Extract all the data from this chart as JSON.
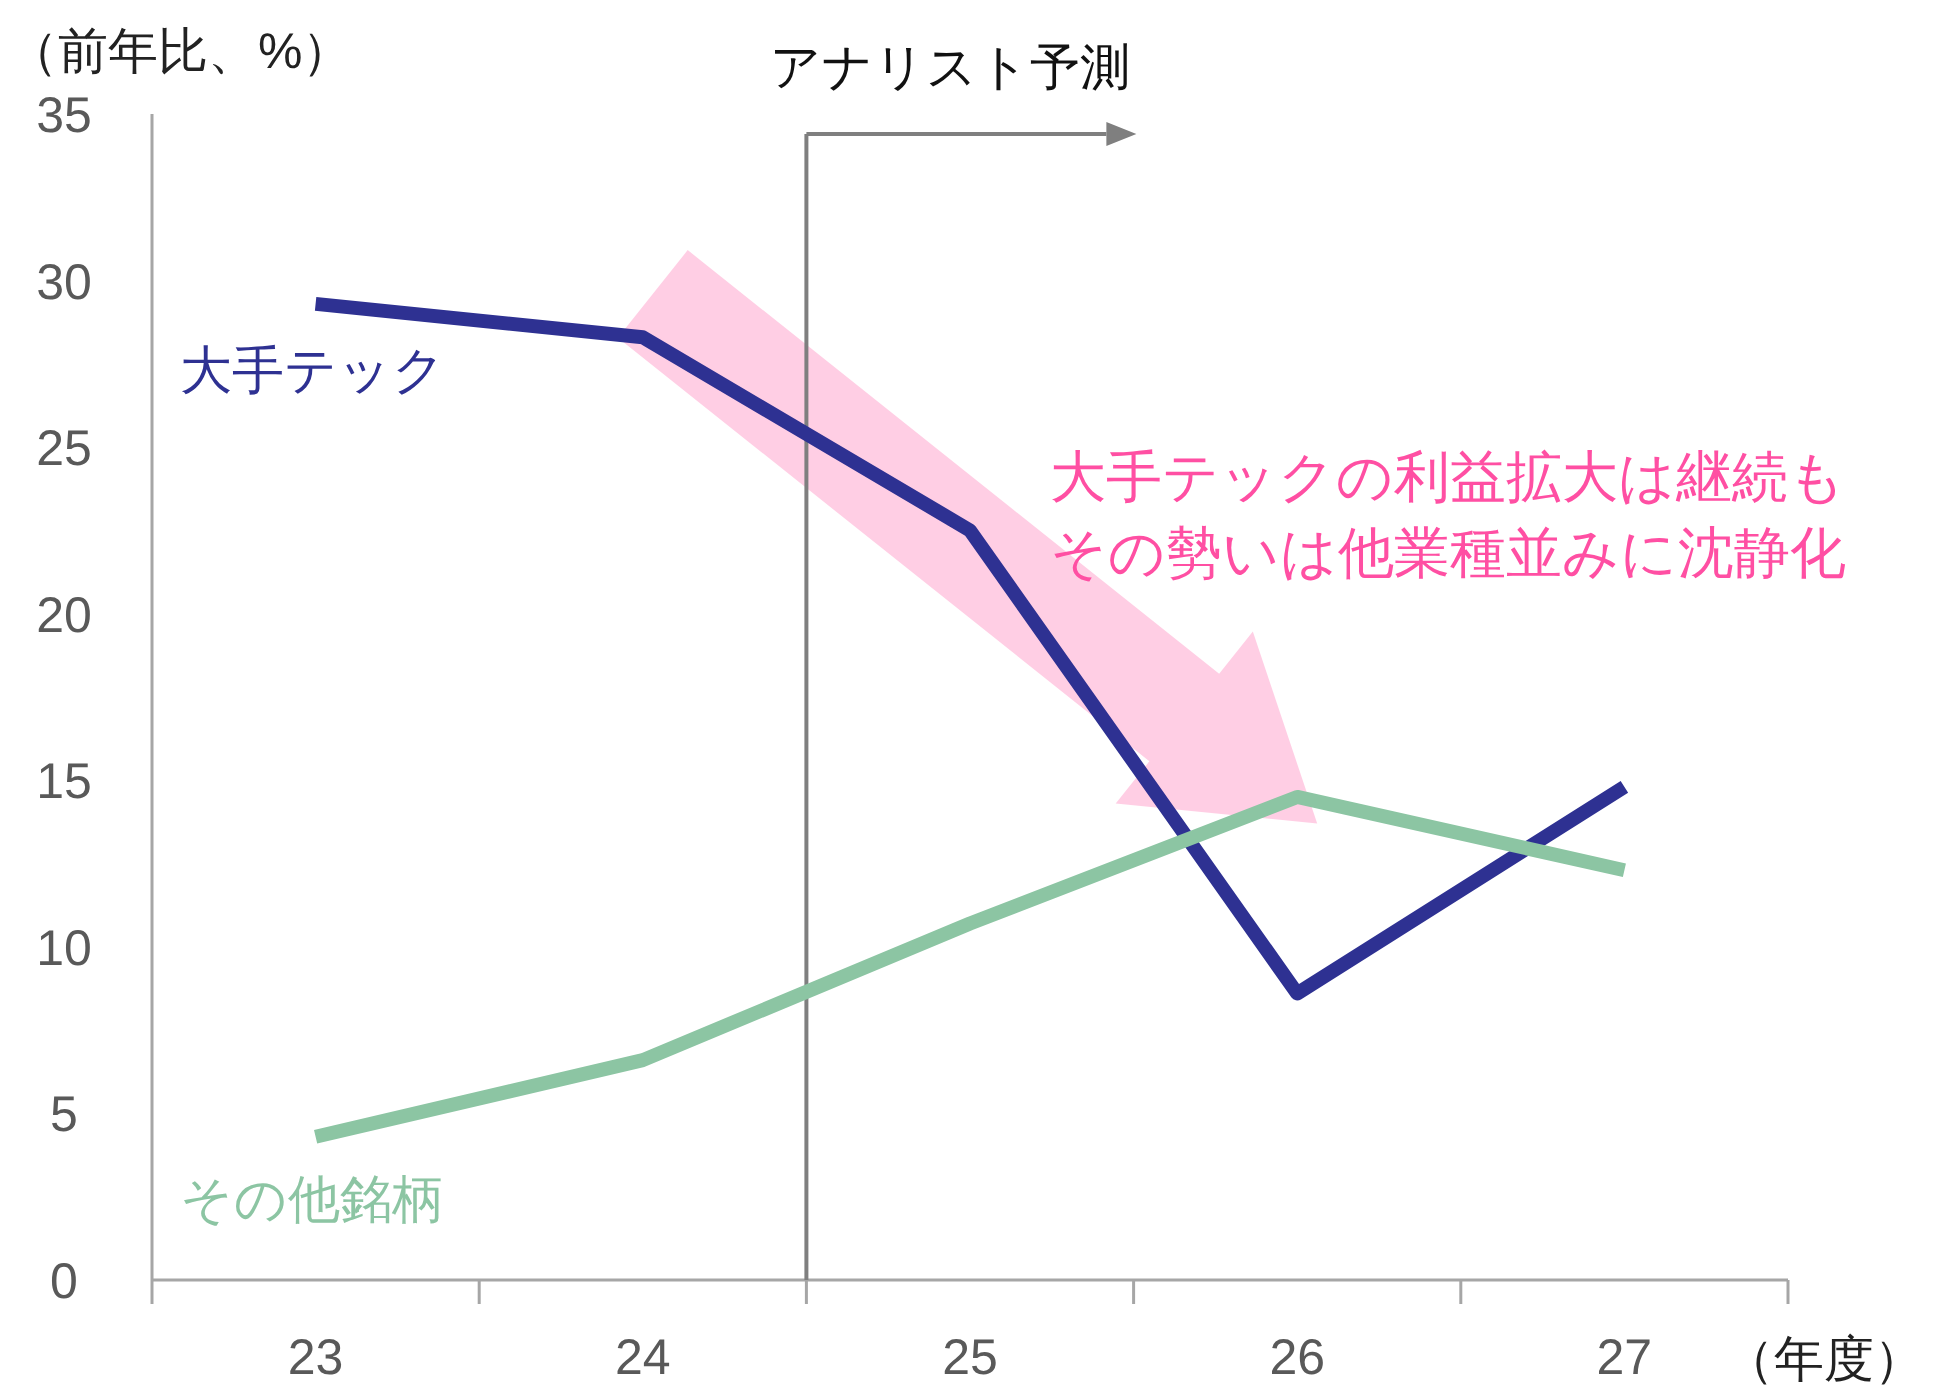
{
  "chart_data": {
    "type": "line",
    "ylabel": "（前年比、%）",
    "xlabel": "（年度）",
    "x": [
      23,
      24,
      25,
      26,
      27
    ],
    "xlim": [
      22.5,
      27.5
    ],
    "xticks": [
      23,
      24,
      25,
      26,
      27,
      {
        "value": 22.5,
        "label": null
      },
      {
        "value": 23.5,
        "label": null
      },
      {
        "value": 24.5,
        "label": null
      },
      {
        "value": 25.5,
        "label": null
      },
      {
        "value": 26.5,
        "label": null
      },
      {
        "value": 27.5,
        "label": null
      }
    ],
    "ylim": [
      0,
      35
    ],
    "yticks": [
      0,
      5,
      10,
      15,
      20,
      25,
      30,
      35
    ],
    "series": [
      {
        "name": "大手テック",
        "color": "#2e3192",
        "values": [
          29.3,
          28.3,
          22.5,
          8.6,
          14.8
        ]
      },
      {
        "name": "その他銘柄",
        "color": "#8cc5a3",
        "values": [
          4.3,
          6.6,
          10.7,
          14.5,
          12.3
        ]
      }
    ],
    "ref_lines": [
      {
        "axis": "x",
        "value": 24.5,
        "label": "アナリスト予測",
        "color": "#7f7f7f"
      }
    ],
    "annotations": [
      "大手テックの利益拡大は継続も",
      "その勢いは他業種並みに沈静化"
    ]
  }
}
